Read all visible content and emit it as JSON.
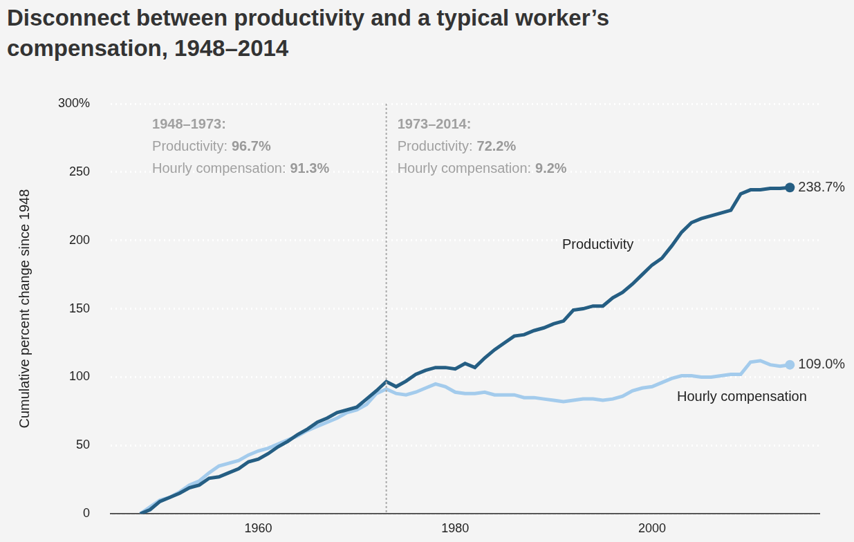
{
  "chart_data": {
    "type": "line",
    "title": "Disconnect between productivity and a typical worker’s compensation, 1948–2014",
    "y_label": "Cumulative percent change since 1948",
    "x": [
      1948,
      1949,
      1950,
      1951,
      1952,
      1953,
      1954,
      1955,
      1956,
      1957,
      1958,
      1959,
      1960,
      1961,
      1962,
      1963,
      1964,
      1965,
      1966,
      1967,
      1968,
      1969,
      1970,
      1971,
      1972,
      1973,
      1974,
      1975,
      1976,
      1977,
      1978,
      1979,
      1980,
      1981,
      1982,
      1983,
      1984,
      1985,
      1986,
      1987,
      1988,
      1989,
      1990,
      1991,
      1992,
      1993,
      1994,
      1995,
      1996,
      1997,
      1998,
      1999,
      2000,
      2001,
      2002,
      2003,
      2004,
      2005,
      2006,
      2007,
      2008,
      2009,
      2010,
      2011,
      2012,
      2013,
      2014
    ],
    "series": [
      {
        "name": "Productivity",
        "color": "#255e83",
        "values": [
          0,
          3,
          9,
          12,
          15,
          19,
          21,
          26,
          27,
          30,
          33,
          38,
          40,
          44,
          49,
          53,
          58,
          62,
          67,
          70,
          74,
          76,
          78,
          84,
          90,
          96.7,
          93,
          97,
          102,
          105,
          107,
          107,
          106,
          110,
          107,
          114,
          120,
          125,
          130,
          131,
          134,
          136,
          139,
          141,
          149,
          150,
          152,
          152,
          158,
          162,
          168,
          175,
          182,
          187,
          196,
          206,
          213,
          216,
          218,
          220,
          222,
          234,
          237,
          237,
          238,
          238,
          238.7
        ],
        "value_labels": [
          null,
          null,
          null,
          null,
          null,
          null,
          null,
          null,
          null,
          null,
          null,
          null,
          null,
          null,
          null,
          null,
          null,
          null,
          null,
          null,
          null,
          null,
          null,
          null,
          null,
          null,
          null,
          null,
          null,
          null,
          null,
          null,
          null,
          null,
          null,
          null,
          null,
          null,
          null,
          null,
          null,
          null,
          null,
          null,
          null,
          null,
          null,
          null,
          null,
          null,
          null,
          null,
          null,
          null,
          null,
          null,
          null,
          null,
          null,
          null,
          null,
          null,
          null,
          null,
          null,
          null,
          "238.7%"
        ]
      },
      {
        "name": "Hourly compensation",
        "color": "#a3cbec",
        "values": [
          0,
          5,
          10,
          12,
          16,
          21,
          24,
          30,
          35,
          37,
          39,
          43,
          46,
          48,
          51,
          54,
          57,
          61,
          64,
          67,
          70,
          74,
          76,
          80,
          88,
          91.3,
          88,
          87,
          89,
          92,
          95,
          93,
          89,
          88,
          88,
          89,
          87,
          87,
          87,
          85,
          85,
          84,
          83,
          82,
          83,
          84,
          84,
          83,
          84,
          86,
          90,
          92,
          93,
          96,
          99,
          101,
          101,
          100,
          100,
          101,
          102,
          102,
          111,
          112,
          109,
          108,
          109.0
        ],
        "value_labels": [
          null,
          null,
          null,
          null,
          null,
          null,
          null,
          null,
          null,
          null,
          null,
          null,
          null,
          null,
          null,
          null,
          null,
          null,
          null,
          null,
          null,
          null,
          null,
          null,
          null,
          null,
          null,
          null,
          null,
          null,
          null,
          null,
          null,
          null,
          null,
          null,
          null,
          null,
          null,
          null,
          null,
          null,
          null,
          null,
          null,
          null,
          null,
          null,
          null,
          null,
          null,
          null,
          null,
          null,
          null,
          null,
          null,
          null,
          null,
          null,
          null,
          null,
          null,
          null,
          null,
          null,
          "109.0%"
        ]
      }
    ],
    "xlim": [
      1945,
      2017
    ],
    "xticks": [
      1960,
      1980,
      2000
    ],
    "ylim": [
      0,
      300
    ],
    "yticks": [
      0,
      50,
      100,
      150,
      200,
      250,
      {
        "value": 300,
        "label": "300%"
      }
    ],
    "grid": true,
    "divider": 1973,
    "periods": [
      {
        "title": "1948–1973:",
        "lines": [
          {
            "label": "Productivity:",
            "value": "96.7%"
          },
          {
            "label": "Hourly compensation:",
            "value": "91.3%"
          }
        ]
      },
      {
        "title": "1973–2014:",
        "lines": [
          {
            "label": "Productivity:",
            "value": "72.2%"
          },
          {
            "label": "Hourly compensation:",
            "value": "9.2%"
          }
        ]
      }
    ]
  }
}
